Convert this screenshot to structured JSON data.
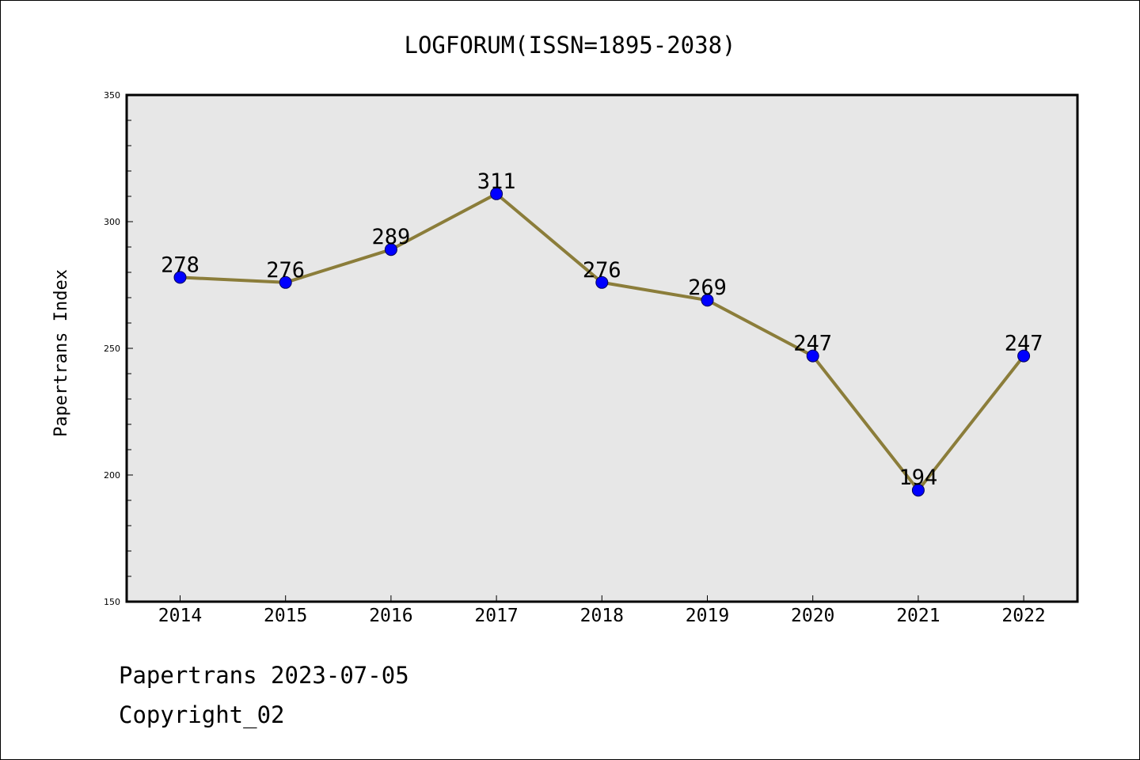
{
  "chart_data": {
    "type": "line",
    "title": "LOGFORUM(ISSN=1895-2038)",
    "xlabel": "",
    "ylabel": "Papertrans Index",
    "categories": [
      "2014",
      "2015",
      "2016",
      "2017",
      "2018",
      "2019",
      "2020",
      "2021",
      "2022"
    ],
    "series": [
      {
        "values": [
          278,
          276,
          289,
          311,
          276,
          269,
          247,
          194,
          247
        ]
      }
    ],
    "ylim": [
      150,
      350
    ],
    "yticks": [
      150,
      200,
      250,
      300,
      350
    ],
    "grid": false,
    "legend": "none",
    "data_labels": true,
    "colors": {
      "line": "#8B7D3A",
      "marker": "#0000FF",
      "plot_background": "#E7E7E7",
      "frame": "#000000"
    }
  },
  "footer": {
    "line1": "Papertrans 2023-07-05",
    "line2": "Copyright_02"
  }
}
